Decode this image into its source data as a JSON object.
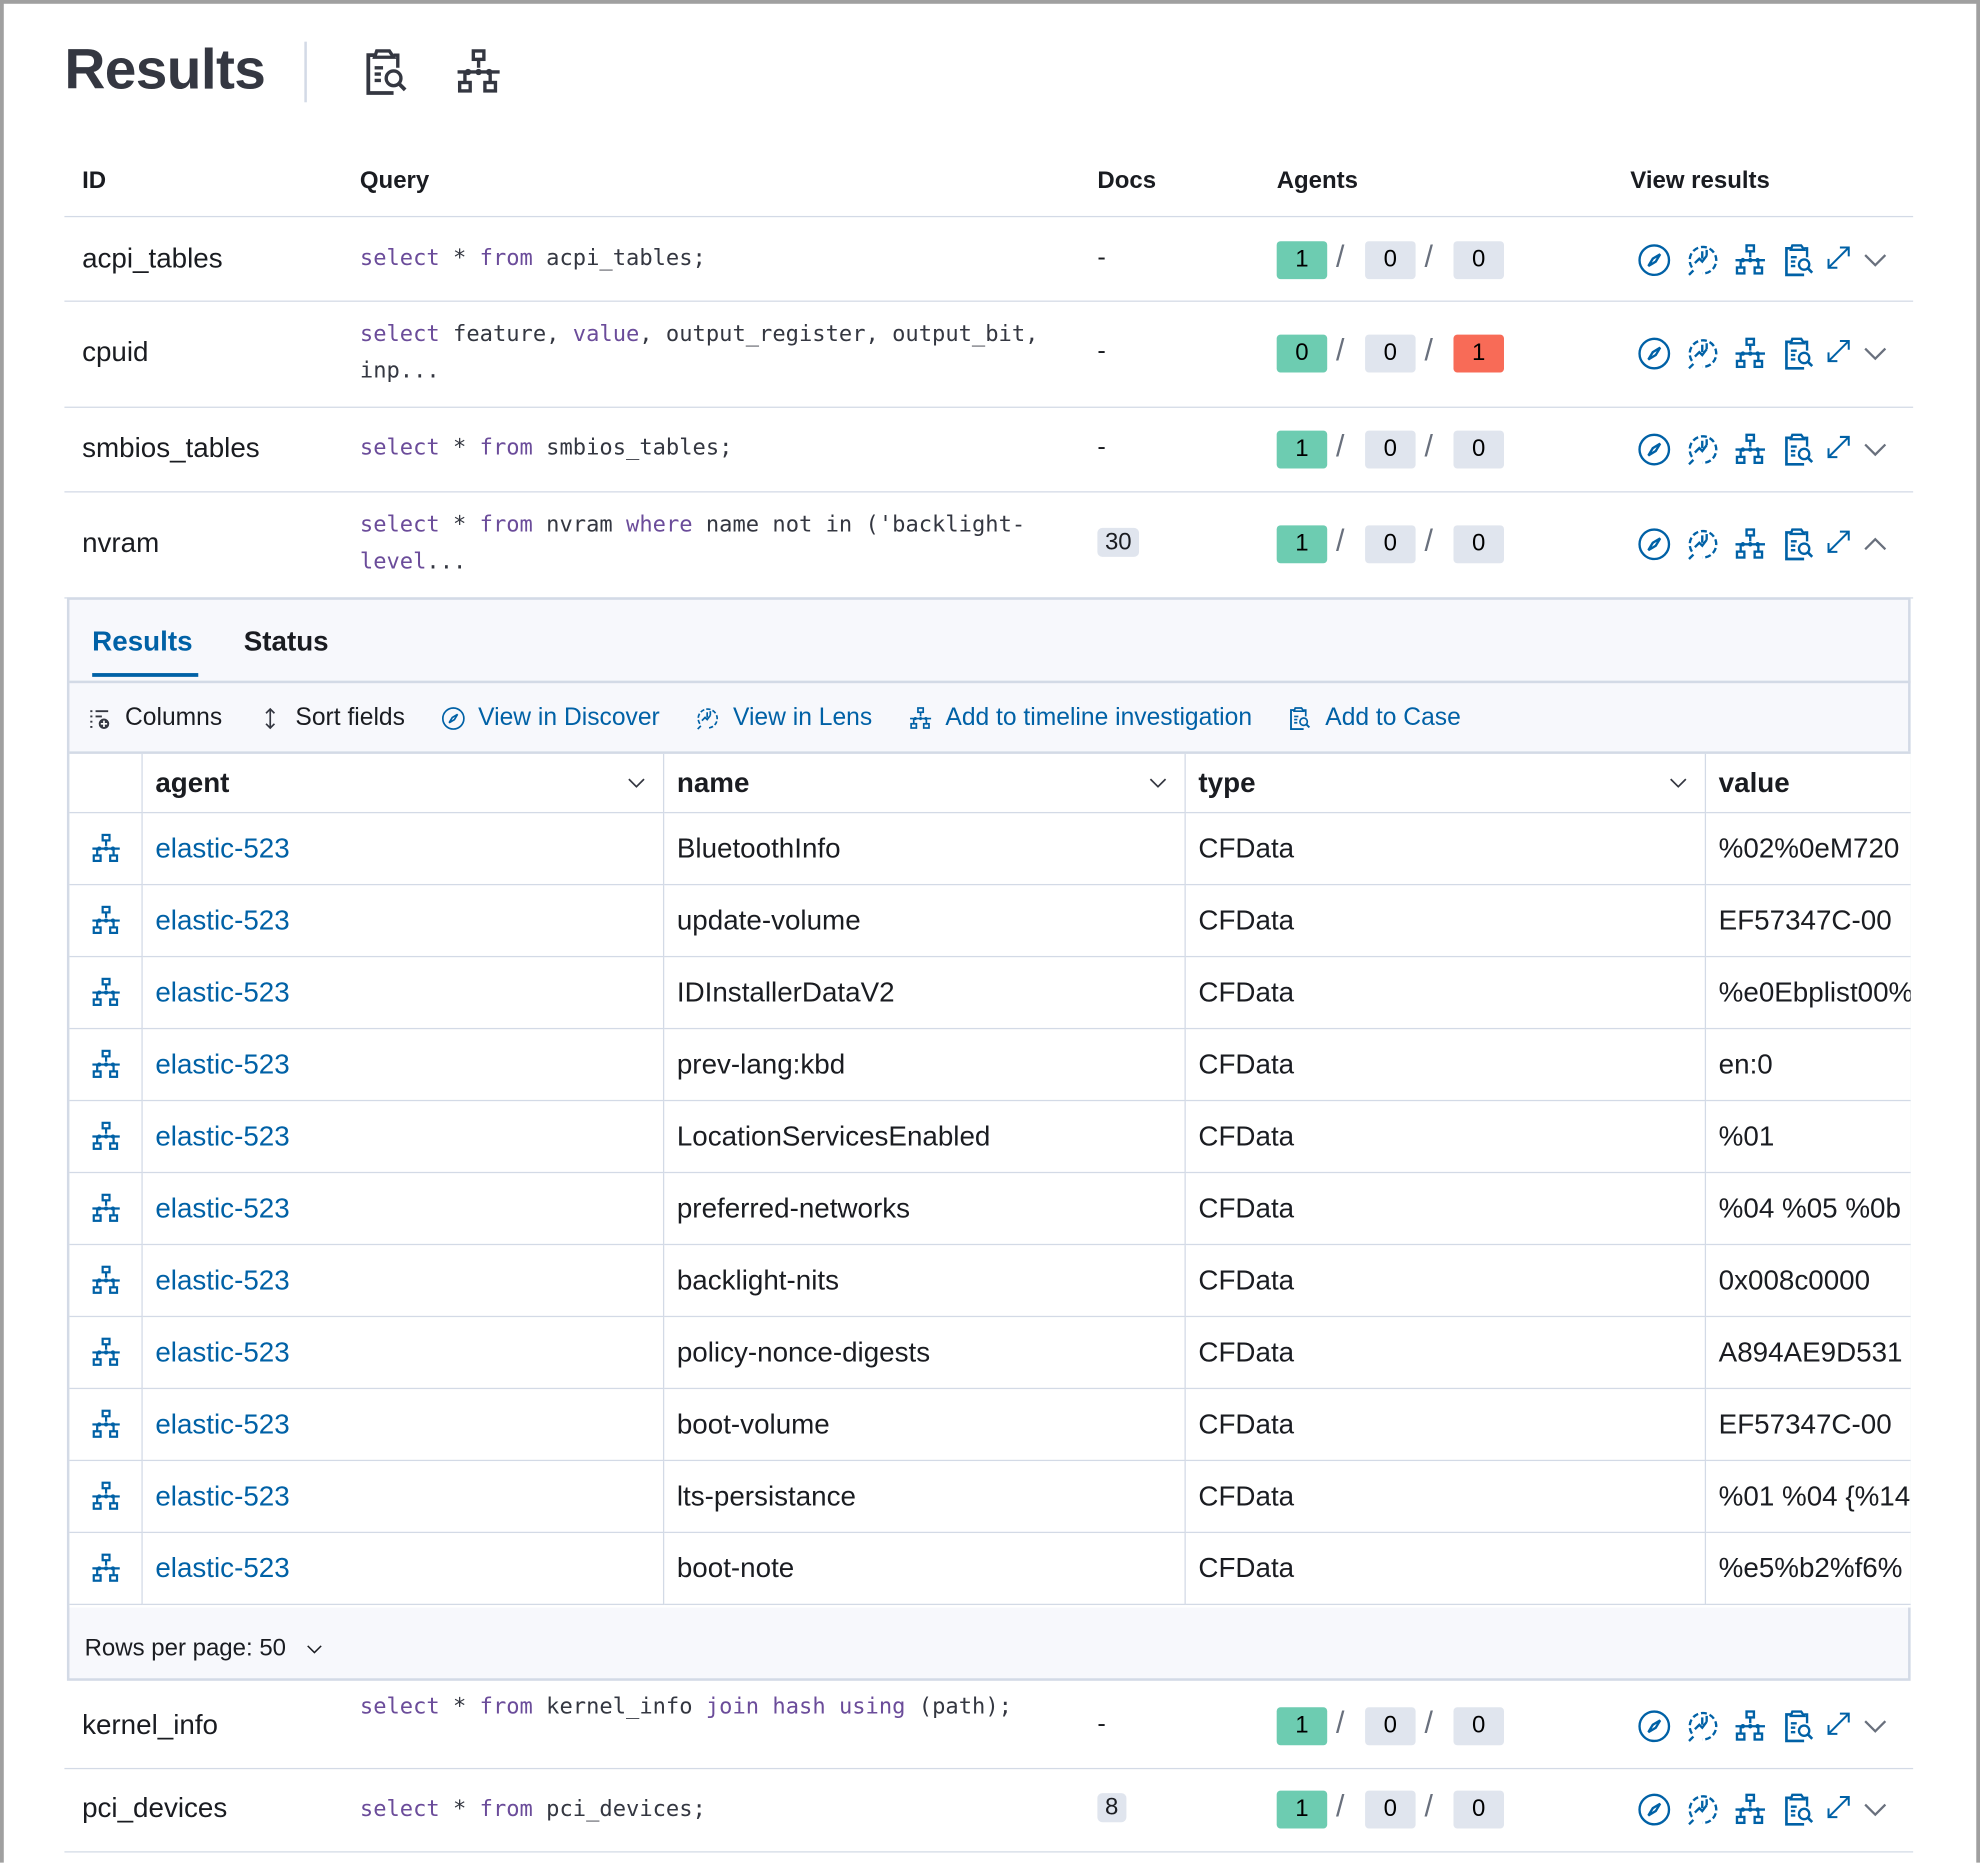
{
  "header": {
    "title": "Results",
    "icons": [
      "clipboard-search-icon",
      "timeline-icon"
    ]
  },
  "colors": {
    "accent": "#0061a6",
    "success": "#6dccb1",
    "neutral": "#e0e5ee",
    "danger": "#f86b57",
    "keyword": "#6b4c9a"
  },
  "table": {
    "columns": [
      "ID",
      "Query",
      "Docs",
      "Agents",
      "View results"
    ],
    "rows": [
      {
        "id": "acpi_tables",
        "query": [
          [
            "select",
            1
          ],
          [
            " * ",
            0
          ],
          [
            "from",
            1
          ],
          [
            " acpi_tables;",
            0
          ]
        ],
        "docs": "-",
        "agents": [
          "1",
          "0",
          "0"
        ],
        "expanded": false
      },
      {
        "id": "cpuid",
        "query": [
          [
            "select",
            1
          ],
          [
            " feature, ",
            0
          ],
          [
            "value",
            1
          ],
          [
            ", output_register, output_bit, inp...",
            0
          ]
        ],
        "docs": "-",
        "agents": [
          "0",
          "0",
          "1"
        ],
        "expanded": false
      },
      {
        "id": "smbios_tables",
        "query": [
          [
            "select",
            1
          ],
          [
            " * ",
            0
          ],
          [
            "from",
            1
          ],
          [
            " smbios_tables;",
            0
          ]
        ],
        "docs": "-",
        "agents": [
          "1",
          "0",
          "0"
        ],
        "expanded": false
      },
      {
        "id": "nvram",
        "query": [
          [
            "select",
            1
          ],
          [
            " * ",
            0
          ],
          [
            "from",
            1
          ],
          [
            " nvram ",
            0
          ],
          [
            "where",
            1
          ],
          [
            " name not in ('backlight-",
            0
          ],
          [
            "level",
            1
          ],
          [
            "...",
            0
          ]
        ],
        "docs": "30",
        "agents": [
          "1",
          "0",
          "0"
        ],
        "expanded": true
      },
      {
        "id": "kernel_info",
        "query": [
          [
            "select",
            1
          ],
          [
            " * ",
            0
          ],
          [
            "from",
            1
          ],
          [
            " kernel_info ",
            0
          ],
          [
            "join",
            1
          ],
          [
            " ",
            0
          ],
          [
            "hash",
            1
          ],
          [
            " ",
            0
          ],
          [
            "using",
            1
          ],
          [
            " (path);",
            0
          ]
        ],
        "docs": "-",
        "agents": [
          "1",
          "0",
          "0"
        ],
        "expanded": false
      },
      {
        "id": "pci_devices",
        "query": [
          [
            "select",
            1
          ],
          [
            " * ",
            0
          ],
          [
            "from",
            1
          ],
          [
            " pci_devices;",
            0
          ]
        ],
        "docs": "8",
        "agents": [
          "1",
          "0",
          "0"
        ],
        "expanded": false
      }
    ],
    "view_icons": [
      "discover-compass-icon",
      "lens-icon",
      "timeline-icon",
      "add-to-case-icon",
      "expand-icon"
    ]
  },
  "panel": {
    "tabs": [
      {
        "label": "Results",
        "active": true
      },
      {
        "label": "Status",
        "active": false
      }
    ],
    "toolbar": [
      {
        "label": "Columns",
        "icon": "columns-icon"
      },
      {
        "label": "Sort fields",
        "icon": "sort-icon"
      },
      {
        "label": "View in Discover",
        "icon": "discover-compass-icon"
      },
      {
        "label": "View in Lens",
        "icon": "lens-icon"
      },
      {
        "label": "Add to timeline investigation",
        "icon": "timeline-icon"
      },
      {
        "label": "Add to Case",
        "icon": "add-to-case-icon"
      }
    ],
    "grid": {
      "columns": [
        "agent",
        "name",
        "type",
        "value"
      ],
      "rows": [
        [
          "elastic-523",
          "BluetoothInfo",
          "CFData",
          "%02%0eM720"
        ],
        [
          "elastic-523",
          "update-volume",
          "CFData",
          "EF57347C-00"
        ],
        [
          "elastic-523",
          "IDInstallerDataV2",
          "CFData",
          "%e0Ebplist00%"
        ],
        [
          "elastic-523",
          "prev-lang:kbd",
          "CFData",
          "en:0"
        ],
        [
          "elastic-523",
          "LocationServicesEnabled",
          "CFData",
          "%01"
        ],
        [
          "elastic-523",
          "preferred-networks",
          "CFData",
          "%04 %05 %0b"
        ],
        [
          "elastic-523",
          "backlight-nits",
          "CFData",
          "0x008c0000"
        ],
        [
          "elastic-523",
          "policy-nonce-digests",
          "CFData",
          "A894AE9D531"
        ],
        [
          "elastic-523",
          "boot-volume",
          "CFData",
          "EF57347C-00"
        ],
        [
          "elastic-523",
          "lts-persistance",
          "CFData",
          "%01 %04 {%14"
        ],
        [
          "elastic-523",
          "boot-note",
          "CFData",
          "%e5%b2%f6%"
        ]
      ]
    },
    "rows_per_page": "Rows per page: 50"
  }
}
